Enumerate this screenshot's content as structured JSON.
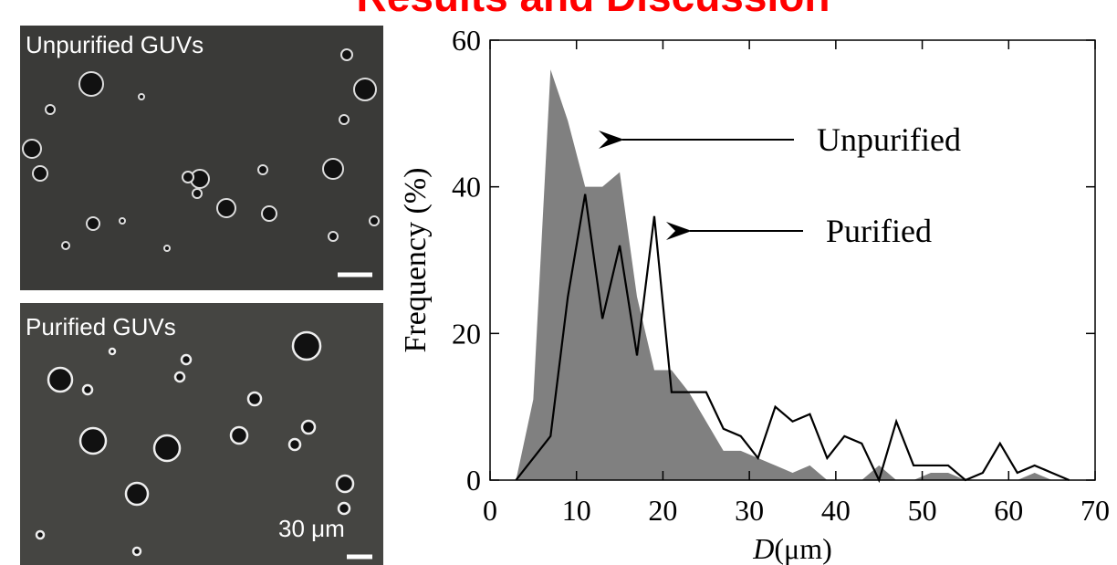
{
  "header": {
    "title": "Results and Discussion"
  },
  "images": [
    {
      "label": "Unpurified GUVs"
    },
    {
      "label": "Purified GUVs",
      "scale_label": "30 μm"
    }
  ],
  "chart_data": {
    "type": "area-line",
    "y_label": "Frequency (%)",
    "x_label_var": "D",
    "x_label_unit": "(μm)",
    "xlim": [
      0,
      70
    ],
    "xticks": [
      0,
      10,
      20,
      30,
      40,
      50,
      60,
      70
    ],
    "ylim": [
      0,
      60
    ],
    "yticks": [
      0,
      20,
      40,
      60
    ],
    "x": [
      3,
      5,
      7,
      9,
      11,
      13,
      15,
      17,
      19,
      21,
      23,
      25,
      27,
      29,
      31,
      33,
      35,
      37,
      39,
      41,
      43,
      45,
      47,
      49,
      51,
      53,
      55,
      57,
      59,
      61,
      63,
      65,
      67
    ],
    "series": [
      {
        "name": "Unpurified",
        "color": "#808080",
        "style": "area",
        "values": [
          0,
          11,
          56,
          49,
          40,
          40,
          42,
          25,
          15,
          15,
          12,
          8,
          4,
          4,
          3,
          2,
          1,
          2,
          0,
          0,
          0,
          2,
          0,
          0,
          1,
          1,
          0,
          0,
          0,
          0,
          1,
          0,
          0
        ]
      },
      {
        "name": "Purified",
        "color": "#000000",
        "style": "line",
        "values": [
          0,
          3,
          6,
          25,
          39,
          22,
          32,
          17,
          36,
          12,
          12,
          12,
          7,
          6,
          3,
          10,
          8,
          9,
          3,
          6,
          5,
          0,
          8,
          2,
          2,
          2,
          0,
          1,
          5,
          1,
          2,
          1,
          0
        ]
      }
    ]
  }
}
